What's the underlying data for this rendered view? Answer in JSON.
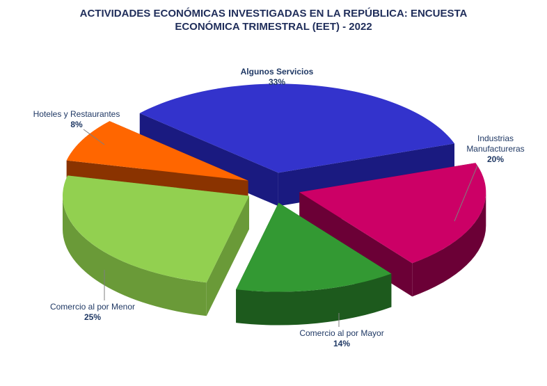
{
  "chart_data": {
    "type": "pie",
    "title_lines": [
      "ACTIVIDADES ECONÓMICAS INVESTIGADAS EN LA REPÚBLICA: ENCUESTA",
      "ECONÓMICA TRIMESTRAL (EET) - 2022"
    ],
    "slices": [
      {
        "name": "Algunos  Servicios",
        "value": 33,
        "label": "33%",
        "color": "#3333cc",
        "side": "#1a1a80"
      },
      {
        "name": "Industrias Manufactureras",
        "value": 20,
        "label": "20%",
        "color": "#cc0066",
        "side": "#6b0036"
      },
      {
        "name": "Comercio al por Mayor",
        "value": 14,
        "label": "14%",
        "color": "#339933",
        "side": "#1d5a1d"
      },
      {
        "name": "Comercio al por Menor",
        "value": 25,
        "label": "25%",
        "color": "#92d050",
        "side": "#6a9a38"
      },
      {
        "name": "Hoteles y Restaurantes",
        "value": 8,
        "label": "8%",
        "color": "#ff6600",
        "side": "#8a3300"
      }
    ],
    "exploded": true,
    "style": "3d-pie"
  }
}
